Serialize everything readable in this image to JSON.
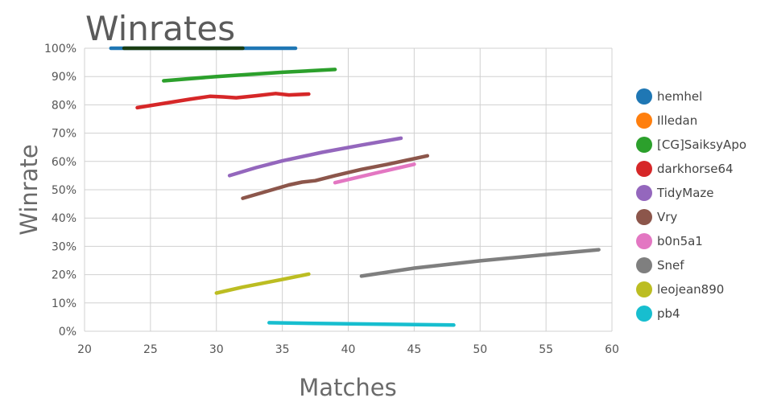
{
  "chart_data": {
    "type": "line",
    "title": "Winrates",
    "xlabel": "Matches",
    "ylabel": "Winrate",
    "xlim": [
      20,
      60
    ],
    "ylim": [
      0,
      100
    ],
    "x_ticks": [
      "20",
      "25",
      "30",
      "35",
      "40",
      "45",
      "50",
      "55",
      "60"
    ],
    "y_ticks": [
      "0%",
      "10%",
      "20%",
      "30%",
      "40%",
      "50%",
      "60%",
      "70%",
      "80%",
      "90%",
      "100%"
    ],
    "grid": true,
    "legend_position": "right",
    "series": [
      {
        "name": "hemhel",
        "color": "#1f77b4",
        "points": [
          [
            22,
            100
          ],
          [
            36,
            100
          ]
        ]
      },
      {
        "name": "Illedan",
        "color": "#ff7f0e",
        "points": []
      },
      {
        "name": "[CG]SaiksyApo",
        "color": "#2ca02c",
        "points": [
          [
            26,
            88.5
          ],
          [
            30,
            90
          ],
          [
            35,
            91.5
          ],
          [
            39,
            92.5
          ]
        ]
      },
      {
        "name": "darkhorse64",
        "color": "#d62728",
        "points": [
          [
            24,
            79
          ],
          [
            26,
            80.5
          ],
          [
            28,
            82
          ],
          [
            29.5,
            83
          ],
          [
            30.5,
            82.8
          ],
          [
            31.5,
            82.5
          ],
          [
            33,
            83.2
          ],
          [
            34.5,
            84
          ],
          [
            35.5,
            83.5
          ],
          [
            37,
            83.8
          ]
        ]
      },
      {
        "name": "TidyMaze",
        "color": "#9467bd",
        "points": [
          [
            31,
            55
          ],
          [
            33,
            57.8
          ],
          [
            35,
            60.2
          ],
          [
            38,
            63.2
          ],
          [
            41,
            65.8
          ],
          [
            44,
            68.2
          ]
        ]
      },
      {
        "name": "Vry",
        "color": "#8c564b",
        "points": [
          [
            32,
            47
          ],
          [
            34,
            49.7
          ],
          [
            35.5,
            51.7
          ],
          [
            36.5,
            52.7
          ],
          [
            37.5,
            53.2
          ],
          [
            39,
            55
          ],
          [
            41,
            57.2
          ],
          [
            43,
            59
          ],
          [
            46,
            62
          ]
        ]
      },
      {
        "name": "b0n5a1",
        "color": "#e377c2",
        "points": [
          [
            39,
            52.5
          ],
          [
            42,
            55.8
          ],
          [
            45,
            59
          ]
        ]
      },
      {
        "name": "Snef",
        "color": "#7f7f7f",
        "points": [
          [
            41,
            19.5
          ],
          [
            45,
            22.3
          ],
          [
            50,
            24.9
          ],
          [
            55,
            27.1
          ],
          [
            59,
            28.8
          ]
        ]
      },
      {
        "name": "leojean890",
        "color": "#bcbd22",
        "points": [
          [
            30,
            13.5
          ],
          [
            32,
            15.6
          ],
          [
            35,
            18.3
          ],
          [
            37,
            20.2
          ]
        ]
      },
      {
        "name": "pb4",
        "color": "#17becf",
        "points": [
          [
            34,
            3
          ],
          [
            40,
            2.6
          ],
          [
            48,
            2.2
          ]
        ]
      },
      {
        "name": "",
        "color": "#1a3d12",
        "legend": false,
        "points": [
          [
            23,
            100
          ],
          [
            32,
            100
          ]
        ]
      }
    ]
  }
}
